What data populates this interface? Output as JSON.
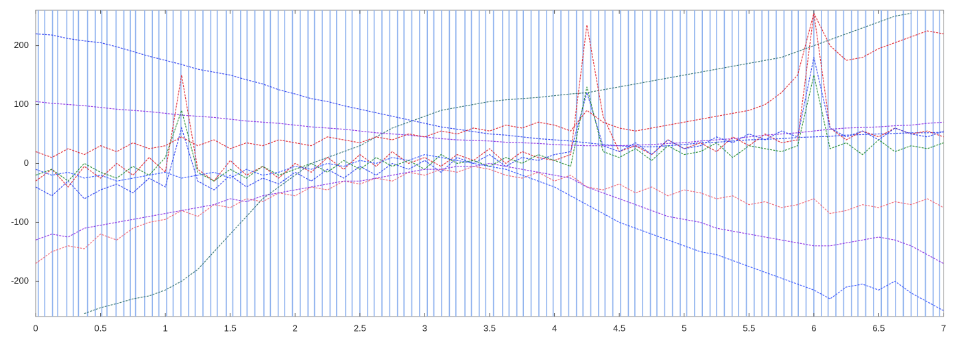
{
  "chart_data": {
    "type": "line",
    "xlim": [
      0,
      7
    ],
    "ylim": [
      -260,
      260
    ],
    "xticks": [
      0,
      0.5,
      1,
      1.5,
      2,
      2.5,
      3,
      3.5,
      4,
      4.5,
      5,
      5.5,
      6,
      6.5,
      7
    ],
    "yticks": [
      -200,
      -100,
      0,
      100,
      200
    ],
    "event_color": "#8fb2ee",
    "event_x": [
      0.02,
      0.07,
      0.13,
      0.17,
      0.24,
      0.29,
      0.33,
      0.4,
      0.46,
      0.51,
      0.55,
      0.62,
      0.68,
      0.73,
      0.77,
      0.84,
      0.9,
      0.95,
      1.01,
      1.06,
      1.12,
      1.18,
      1.23,
      1.29,
      1.35,
      1.4,
      1.47,
      1.52,
      1.58,
      1.63,
      1.69,
      1.76,
      1.81,
      1.87,
      1.92,
      1.98,
      2.04,
      2.1,
      2.15,
      2.21,
      2.27,
      2.32,
      2.39,
      2.44,
      2.5,
      2.56,
      2.61,
      2.67,
      2.73,
      2.79,
      2.84,
      2.9,
      2.96,
      3.02,
      3.07,
      3.13,
      3.19,
      3.24,
      3.31,
      3.36,
      3.42,
      3.47,
      3.53,
      3.6,
      3.65,
      3.71,
      3.76,
      3.82,
      3.88,
      3.94,
      3.99,
      4.05,
      4.11,
      4.17,
      4.22,
      4.28,
      4.34,
      4.39,
      4.45,
      4.51,
      4.57,
      4.62,
      4.68,
      4.74,
      4.79,
      4.85,
      4.91,
      4.97,
      5.02,
      5.08,
      5.14,
      5.2,
      5.25,
      5.31,
      5.37,
      5.42,
      5.48,
      5.54,
      5.6,
      5.65,
      5.71,
      5.77,
      5.83,
      5.88,
      5.94,
      6.0,
      6.06,
      6.11,
      6.17,
      6.23,
      6.29,
      6.34,
      6.4,
      6.46,
      6.52,
      6.57,
      6.63,
      6.69,
      6.75,
      6.8,
      6.86,
      6.92,
      6.97
    ],
    "x": [
      0,
      0.125,
      0.25,
      0.375,
      0.5,
      0.625,
      0.75,
      0.875,
      1,
      1.125,
      1.25,
      1.375,
      1.5,
      1.625,
      1.75,
      1.875,
      2,
      2.125,
      2.25,
      2.375,
      2.5,
      2.625,
      2.75,
      2.875,
      3,
      3.125,
      3.25,
      3.375,
      3.5,
      3.625,
      3.75,
      3.875,
      4,
      4.125,
      4.25,
      4.375,
      4.5,
      4.625,
      4.75,
      4.875,
      5,
      5.125,
      5.25,
      5.375,
      5.5,
      5.625,
      5.75,
      5.875,
      6,
      6.125,
      6.25,
      6.375,
      6.5,
      6.625,
      6.75,
      6.875,
      7
    ],
    "series": [
      {
        "color": "#2f6f6f",
        "values": [
          null,
          null,
          null,
          -255,
          -245,
          -238,
          -230,
          -225,
          -215,
          -200,
          -180,
          -150,
          -120,
          -90,
          -60,
          -40,
          -20,
          0,
          10,
          20,
          30,
          45,
          60,
          70,
          80,
          90,
          95,
          100,
          105,
          108,
          110,
          112,
          115,
          118,
          120,
          125,
          130,
          135,
          140,
          145,
          150,
          155,
          160,
          165,
          170,
          175,
          180,
          190,
          200,
          210,
          220,
          230,
          240,
          250,
          255,
          null,
          null
        ]
      },
      {
        "color": "#2a3cf0",
        "values": [
          220,
          218,
          212,
          208,
          205,
          198,
          190,
          182,
          175,
          168,
          160,
          155,
          150,
          142,
          135,
          125,
          118,
          110,
          105,
          98,
          92,
          86,
          80,
          74,
          68,
          62,
          58,
          54,
          50,
          48,
          45,
          42,
          40,
          38,
          35,
          32,
          30,
          28,
          28,
          30,
          32,
          35,
          36,
          38,
          40,
          41,
          42,
          44,
          45,
          46,
          48,
          49,
          50,
          51,
          52,
          52,
          53
        ]
      },
      {
        "color": "#8a2be2",
        "values": [
          105,
          102,
          100,
          98,
          95,
          92,
          90,
          88,
          85,
          82,
          80,
          78,
          75,
          72,
          70,
          68,
          65,
          62,
          60,
          58,
          55,
          52,
          50,
          48,
          45,
          42,
          40,
          39,
          38,
          36,
          35,
          34,
          32,
          31,
          30,
          30,
          30,
          31,
          32,
          34,
          35,
          38,
          40,
          42,
          45,
          48,
          50,
          52,
          55,
          58,
          60,
          61,
          62,
          64,
          65,
          68,
          70
        ]
      },
      {
        "color": "#e0202a",
        "values": [
          -30,
          -10,
          -40,
          -5,
          -25,
          0,
          -20,
          10,
          -15,
          150,
          -10,
          -30,
          5,
          -20,
          -5,
          -25,
          0,
          -15,
          10,
          -10,
          15,
          -5,
          20,
          0,
          10,
          -5,
          15,
          5,
          25,
          0,
          20,
          10,
          5,
          15,
          235,
          80,
          20,
          30,
          15,
          40,
          25,
          35,
          20,
          45,
          30,
          50,
          35,
          40,
          255,
          60,
          40,
          55,
          45,
          60,
          50,
          55,
          45
        ]
      },
      {
        "color": "#2a3cf0",
        "values": [
          -40,
          -55,
          -30,
          -60,
          -45,
          -35,
          -50,
          -25,
          -40,
          60,
          -30,
          -45,
          -20,
          -40,
          -25,
          -35,
          -15,
          -30,
          -10,
          -25,
          -5,
          -20,
          0,
          -10,
          5,
          -15,
          10,
          0,
          15,
          -5,
          10,
          5,
          15,
          20,
          120,
          30,
          20,
          35,
          15,
          40,
          25,
          30,
          45,
          35,
          50,
          40,
          55,
          45,
          180,
          60,
          45,
          55,
          40,
          60,
          50,
          45,
          55
        ]
      },
      {
        "color": "#1f8a2a",
        "values": [
          -20,
          -10,
          -30,
          0,
          -15,
          -25,
          -5,
          -20,
          10,
          90,
          -15,
          -30,
          -10,
          -25,
          -5,
          -20,
          -10,
          0,
          -15,
          5,
          -10,
          10,
          -5,
          5,
          -10,
          15,
          0,
          5,
          -5,
          10,
          0,
          15,
          5,
          -5,
          130,
          20,
          10,
          25,
          5,
          30,
          15,
          20,
          35,
          10,
          30,
          25,
          20,
          30,
          150,
          25,
          35,
          15,
          40,
          20,
          30,
          25,
          35
        ]
      },
      {
        "color": "#f06070",
        "values": [
          -170,
          -150,
          -140,
          -145,
          -120,
          -130,
          -110,
          -100,
          -95,
          -80,
          -90,
          -70,
          -75,
          -60,
          -65,
          -50,
          -55,
          -40,
          -45,
          -30,
          -35,
          -25,
          -30,
          -15,
          -20,
          -10,
          -15,
          -5,
          -10,
          -20,
          -25,
          -15,
          -30,
          -20,
          -40,
          -45,
          -35,
          -50,
          -40,
          -55,
          -45,
          -50,
          -60,
          -55,
          -70,
          -65,
          -75,
          -70,
          -60,
          -85,
          -80,
          -70,
          -75,
          -65,
          -70,
          -60,
          -75
        ]
      },
      {
        "color": "#8a2be2",
        "values": [
          -130,
          -120,
          -125,
          -110,
          -105,
          -100,
          -95,
          -90,
          -85,
          -80,
          -75,
          -70,
          -60,
          -65,
          -55,
          -50,
          -45,
          -40,
          -35,
          -30,
          -30,
          -25,
          -20,
          -15,
          -10,
          -10,
          -5,
          -5,
          0,
          -5,
          -10,
          -15,
          -20,
          -25,
          -40,
          -50,
          -60,
          -70,
          -80,
          -90,
          -95,
          -100,
          -110,
          -115,
          -120,
          -125,
          -130,
          -135,
          -140,
          -140,
          -135,
          -130,
          -125,
          -130,
          -140,
          -155,
          -170
        ]
      },
      {
        "color": "#3050ff",
        "values": [
          -10,
          -20,
          -15,
          -25,
          -20,
          -30,
          -25,
          -20,
          -15,
          -25,
          -20,
          -15,
          -25,
          -10,
          -20,
          -15,
          -5,
          -10,
          0,
          -5,
          5,
          0,
          10,
          5,
          15,
          10,
          5,
          0,
          -5,
          -10,
          -20,
          -30,
          -40,
          -55,
          -70,
          -85,
          -100,
          -110,
          -120,
          -130,
          -140,
          -150,
          -155,
          -165,
          -175,
          -185,
          -195,
          -205,
          -215,
          -230,
          -210,
          -205,
          -215,
          -200,
          -220,
          -235,
          -250
        ]
      },
      {
        "color": "#e0202a",
        "values": [
          20,
          10,
          25,
          15,
          30,
          20,
          35,
          25,
          30,
          45,
          30,
          40,
          25,
          35,
          30,
          40,
          35,
          30,
          45,
          40,
          35,
          45,
          40,
          50,
          45,
          55,
          50,
          60,
          55,
          65,
          60,
          70,
          65,
          55,
          90,
          70,
          60,
          55,
          60,
          65,
          70,
          75,
          80,
          85,
          90,
          100,
          120,
          150,
          255,
          200,
          175,
          180,
          195,
          205,
          215,
          225,
          220
        ]
      }
    ]
  }
}
